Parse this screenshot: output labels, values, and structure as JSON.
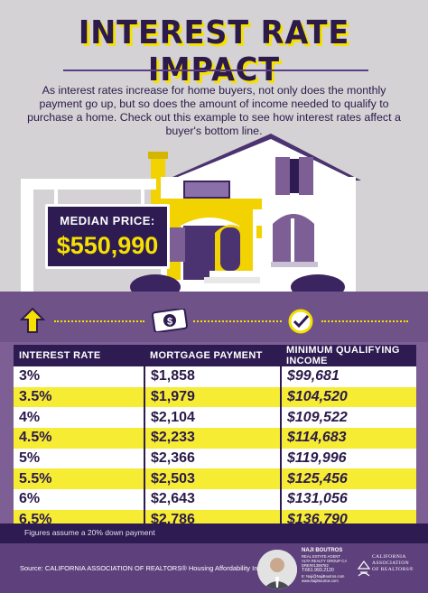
{
  "title": "INTEREST RATE IMPACT",
  "intro": "As interest rates increase for home buyers, not only does the monthly payment go up, but so does the amount of income needed to qualify to purchase a home. Check out this example to see how interest rates affect a buyer's bottom line.",
  "price": {
    "label": "MEDIAN PRICE:",
    "value": "$550,990"
  },
  "table": {
    "headers": [
      "INTEREST RATE",
      "MORTGAGE PAYMENT",
      "MINIMUM QUALIFYING INCOME"
    ],
    "rows": [
      [
        "3%",
        "$1,858",
        "$99,681"
      ],
      [
        "3.5%",
        "$1,979",
        "$104,520"
      ],
      [
        "4%",
        "$2,104",
        "$109,522"
      ],
      [
        "4.5%",
        "$2,233",
        "$114,683"
      ],
      [
        "5%",
        "$2,366",
        "$119,996"
      ],
      [
        "5.5%",
        "$2,503",
        "$125,456"
      ],
      [
        "6%",
        "$2,643",
        "$131,056"
      ],
      [
        "6.5%",
        "$2,786",
        "$136,790"
      ]
    ]
  },
  "footnote": "Figures assume a 20% down payment",
  "source": "Source: CALIFORNIA ASSOCIATION OF REALTORS® Housing Affordability Index",
  "agent": {
    "name": "NAJI BOUTROS",
    "title": "REAL ESTATE AGENT",
    "company": "ALTA REALTY GROUP CA",
    "dre": "DRE#01398782",
    "phone": "T:661.993.2120",
    "email": "E: Naji@NajiBoutros.com",
    "web": "www.NajiBoutros.com"
  },
  "association": {
    "line1": "CALIFORNIA",
    "line2": "ASSOCIATION",
    "line3": "OF REALTORS®"
  },
  "icons": [
    "arrow-up-icon",
    "dollar-bill-icon",
    "checkmark-icon"
  ],
  "colors": {
    "purple_dark": "#2d1b52",
    "purple": "#7d5f95",
    "yellow": "#f5e000",
    "white": "#ffffff"
  }
}
